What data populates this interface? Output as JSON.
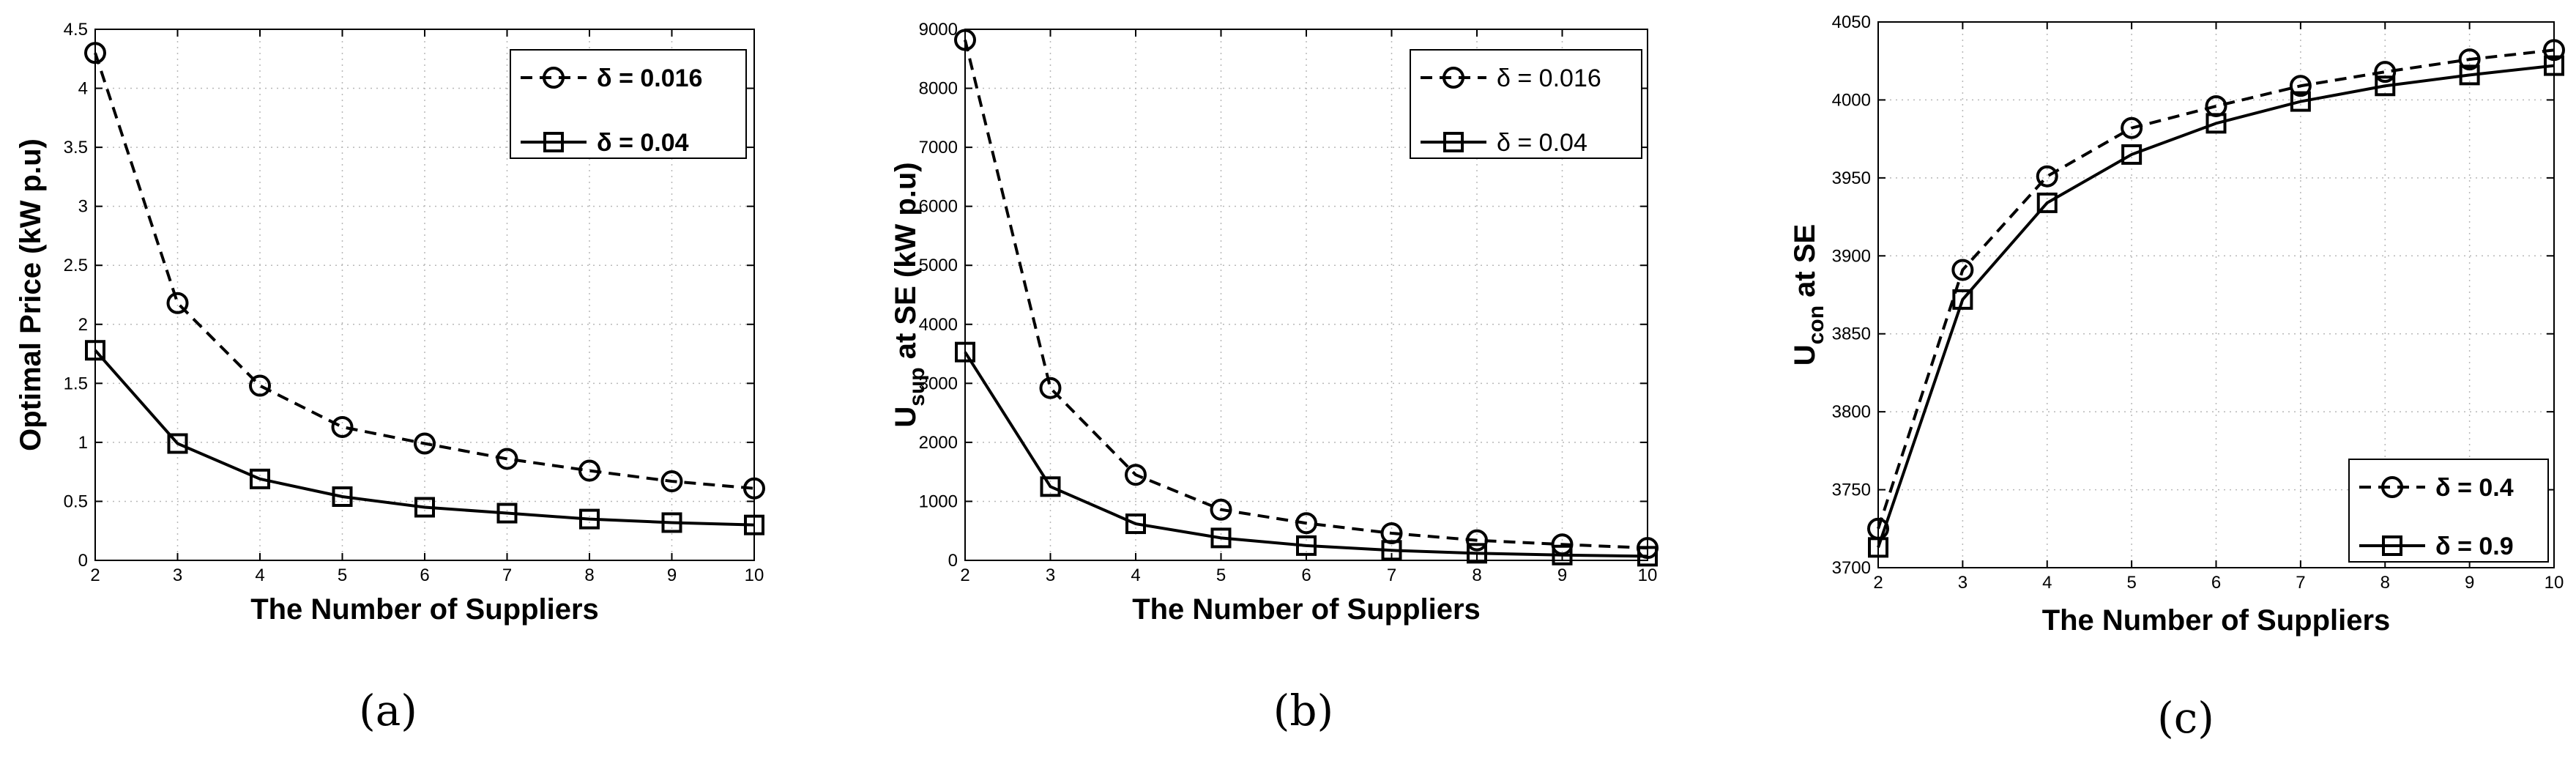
{
  "chart_data": [
    {
      "type": "line",
      "panel": "a",
      "caption": "(a)",
      "xlabel": "The Number of Suppliers",
      "ylabel": "Optimal Price (kW p.u)",
      "x": [
        2,
        3,
        4,
        5,
        6,
        7,
        8,
        9,
        10
      ],
      "xlim": [
        2,
        10
      ],
      "ylim": [
        0,
        4.5
      ],
      "xticks": [
        "2",
        "3",
        "4",
        "5",
        "6",
        "7",
        "8",
        "9",
        "10"
      ],
      "yticks": [
        "0",
        "0.5",
        "1",
        "1.5",
        "2",
        "2.5",
        "3",
        "3.5",
        "4",
        "4.5"
      ],
      "grid": true,
      "legend_position": "top-right",
      "legend_bold": true,
      "series": [
        {
          "name": "δ = 0.016",
          "style": "dashed",
          "marker": "circle",
          "values": [
            4.3,
            2.18,
            1.48,
            1.13,
            0.99,
            0.86,
            0.76,
            0.67,
            0.61
          ]
        },
        {
          "name": "δ = 0.04",
          "style": "solid",
          "marker": "square",
          "values": [
            1.78,
            0.99,
            0.69,
            0.54,
            0.45,
            0.4,
            0.35,
            0.32,
            0.3
          ]
        }
      ]
    },
    {
      "type": "line",
      "panel": "b",
      "caption": "(b)",
      "xlabel": "The Number of Suppliers",
      "ylabel_main": "U",
      "ylabel_sub": "sup",
      "ylabel_rest": " at SE (kW p.u)",
      "x": [
        2,
        3,
        4,
        5,
        6,
        7,
        8,
        9,
        10
      ],
      "xlim": [
        2,
        10
      ],
      "ylim": [
        0,
        9000
      ],
      "xticks": [
        "2",
        "3",
        "4",
        "5",
        "6",
        "7",
        "8",
        "9",
        "10"
      ],
      "yticks": [
        "0",
        "1000",
        "2000",
        "3000",
        "4000",
        "5000",
        "6000",
        "7000",
        "8000",
        "9000"
      ],
      "grid": true,
      "legend_position": "top-right",
      "legend_bold": false,
      "series": [
        {
          "name": "δ = 0.016",
          "style": "dashed",
          "marker": "circle",
          "values": [
            8820,
            2920,
            1450,
            860,
            630,
            460,
            340,
            270,
            210
          ]
        },
        {
          "name": "δ = 0.04",
          "style": "solid",
          "marker": "square",
          "values": [
            3530,
            1250,
            620,
            380,
            250,
            170,
            120,
            90,
            70
          ]
        }
      ]
    },
    {
      "type": "line",
      "panel": "c",
      "caption": "(c)",
      "xlabel": "The Number of Suppliers",
      "ylabel_main": "U",
      "ylabel_sub": "con",
      "ylabel_rest": " at SE",
      "x": [
        2,
        3,
        4,
        5,
        6,
        7,
        8,
        9,
        10
      ],
      "xlim": [
        2,
        10
      ],
      "ylim": [
        3700,
        4050
      ],
      "xticks": [
        "2",
        "3",
        "4",
        "5",
        "6",
        "7",
        "8",
        "9",
        "10"
      ],
      "yticks": [
        "3700",
        "3750",
        "3800",
        "3850",
        "3900",
        "3950",
        "4000",
        "4050"
      ],
      "grid": true,
      "legend_position": "bottom-right",
      "legend_bold": true,
      "series": [
        {
          "name": "δ = 0.4",
          "style": "dashed",
          "marker": "circle",
          "values": [
            3725,
            3891,
            3951,
            3982,
            3996,
            4009,
            4018,
            4026,
            4032
          ]
        },
        {
          "name": "δ = 0.9",
          "style": "solid",
          "marker": "square",
          "values": [
            3713,
            3872,
            3934,
            3965,
            3985,
            3999,
            4009,
            4016,
            4022
          ]
        }
      ]
    }
  ]
}
